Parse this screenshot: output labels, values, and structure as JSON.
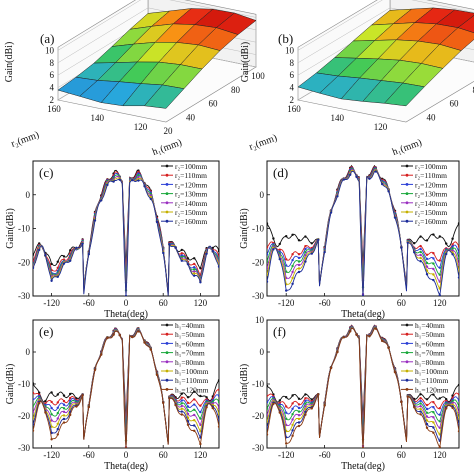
{
  "chart_data": [
    {
      "id": "a",
      "type": "surface3d",
      "panel_label": "(a)",
      "zlabel": "Gain(dBi)",
      "zticks": [
        "2",
        "4",
        "6",
        "8",
        "10"
      ],
      "xlabel": "r₂(mm)",
      "xticks": [
        "160",
        "140",
        "120"
      ],
      "ylabel": "h₁(mm)",
      "yticks": [
        "20",
        "40",
        "60",
        "80",
        "100"
      ],
      "grid": [
        [
          3.6,
          3.9,
          4.4,
          5.3,
          6.3,
          7.1
        ],
        [
          3.3,
          4.1,
          5.2,
          6.4,
          7.5,
          8.2
        ],
        [
          3.0,
          4.6,
          6.0,
          7.4,
          8.6,
          9.3
        ],
        [
          3.2,
          5.0,
          6.7,
          8.1,
          9.2,
          9.9
        ],
        [
          3.9,
          5.5,
          7.0,
          8.4,
          9.4,
          10.0
        ],
        [
          4.2,
          5.6,
          7.0,
          8.2,
          9.0,
          9.5
        ]
      ]
    },
    {
      "id": "b",
      "type": "surface3d",
      "panel_label": "(b)",
      "zlabel": "Gain(dBi)",
      "zticks": [
        "2",
        "4",
        "6",
        "8",
        "10"
      ],
      "xlabel": "r₂(mm)",
      "xticks": [
        "160",
        "140",
        "120"
      ],
      "ylabel": "h₁(mm)",
      "yticks": [
        "40",
        "60",
        "80",
        "100"
      ],
      "grid": [
        [
          4.1,
          4.6,
          5.3,
          6.2,
          7.0,
          7.6
        ],
        [
          3.8,
          4.8,
          5.9,
          7.0,
          7.9,
          8.5
        ],
        [
          3.6,
          5.2,
          6.5,
          7.8,
          8.8,
          9.4
        ],
        [
          3.9,
          5.5,
          7.0,
          8.3,
          9.3,
          9.8
        ],
        [
          4.3,
          5.8,
          7.2,
          8.5,
          9.4,
          9.9
        ],
        [
          4.6,
          5.9,
          7.1,
          8.2,
          9.0,
          9.4
        ]
      ]
    },
    {
      "id": "c",
      "type": "line",
      "panel_label": "(c)",
      "xlabel": "Theta(deg)",
      "ylabel": "Gain(dBi)",
      "xlim": [
        -150,
        150
      ],
      "ylim": [
        -30,
        10
      ],
      "xticks": [
        "-120",
        "-60",
        "0",
        "60",
        "120"
      ],
      "yticks": [
        "0",
        "-10",
        "-20",
        "-30"
      ],
      "legend_position": "right",
      "series": [
        {
          "name": "r₂=100mm",
          "color": "#111111",
          "peak": 6.8,
          "floor": -21
        },
        {
          "name": "r₂=110mm",
          "color": "#d62020",
          "peak": 6.5,
          "floor": -23
        },
        {
          "name": "r₂=120mm",
          "color": "#2a3fd6",
          "peak": 6.2,
          "floor": -24
        },
        {
          "name": "r₂=130mm",
          "color": "#18a83a",
          "peak": 5.9,
          "floor": -24.5
        },
        {
          "name": "r₂=140mm",
          "color": "#9a2fc0",
          "peak": 5.6,
          "floor": -25
        },
        {
          "name": "r₂=150mm",
          "color": "#c5b000",
          "peak": 5.3,
          "floor": -25.5
        },
        {
          "name": "r₂=160mm",
          "color": "#1b2b99",
          "peak": 5.0,
          "floor": -26
        }
      ]
    },
    {
      "id": "d",
      "type": "line",
      "panel_label": "(d)",
      "xlabel": "Theta(deg)",
      "ylabel": "Gain(dBi)",
      "xlim": [
        -150,
        150
      ],
      "ylim": [
        -30,
        10
      ],
      "xticks": [
        "-120",
        "-60",
        "0",
        "60",
        "120"
      ],
      "yticks": [
        "0",
        "-10",
        "-20",
        "-30"
      ],
      "legend_position": "right",
      "series": [
        {
          "name": "r₂=100mm",
          "color": "#111111",
          "peak": 7.8,
          "floor": -12
        },
        {
          "name": "r₂=110mm",
          "color": "#d62020",
          "peak": 7.6,
          "floor": -19
        },
        {
          "name": "r₂=120mm",
          "color": "#2a3fd6",
          "peak": 7.4,
          "floor": -21
        },
        {
          "name": "r₂=130mm",
          "color": "#18a83a",
          "peak": 7.2,
          "floor": -23
        },
        {
          "name": "r₂=140mm",
          "color": "#9a2fc0",
          "peak": 7.0,
          "floor": -25
        },
        {
          "name": "r₂=150mm",
          "color": "#c5b000",
          "peak": 6.8,
          "floor": -27
        },
        {
          "name": "r₂=160mm",
          "color": "#1b2b99",
          "peak": 6.6,
          "floor": -29
        }
      ]
    },
    {
      "id": "e",
      "type": "line",
      "panel_label": "(e)",
      "xlabel": "Theta(deg)",
      "ylabel": "Gain(dBi)",
      "xlim": [
        -150,
        150
      ],
      "ylim": [
        -30,
        10
      ],
      "xticks": [
        "-120",
        "-60",
        "0",
        "60",
        "120"
      ],
      "yticks": [
        "0",
        "-10",
        "-20",
        "-30"
      ],
      "legend_position": "right",
      "series": [
        {
          "name": "h₁=40mm",
          "color": "#111111",
          "peak": 7.0,
          "floor": -13
        },
        {
          "name": "h₁=50mm",
          "color": "#d62020",
          "peak": 6.9,
          "floor": -16
        },
        {
          "name": "h₁=60mm",
          "color": "#2a3fd6",
          "peak": 6.8,
          "floor": -18
        },
        {
          "name": "h₁=70mm",
          "color": "#18a83a",
          "peak": 6.7,
          "floor": -20
        },
        {
          "name": "h₁=80mm",
          "color": "#9a2fc0",
          "peak": 6.6,
          "floor": -22
        },
        {
          "name": "h₁=100mm",
          "color": "#c5b000",
          "peak": 6.5,
          "floor": -24
        },
        {
          "name": "h₁=110mm",
          "color": "#1b2b99",
          "peak": 6.4,
          "floor": -26
        },
        {
          "name": "h₁=120mm",
          "color": "#8a3b12",
          "peak": 6.3,
          "floor": -28
        }
      ]
    },
    {
      "id": "f",
      "type": "line",
      "panel_label": "(f)",
      "xlabel": "Theta(deg)",
      "ylabel": "Gain(dBi)",
      "xlim": [
        -150,
        150
      ],
      "ylim": [
        -30,
        10
      ],
      "xticks": [
        "-120",
        "-60",
        "0",
        "60",
        "120"
      ],
      "yticks": [
        "10",
        "0",
        "-10",
        "-20",
        "-30"
      ],
      "legend_position": "right",
      "series": [
        {
          "name": "h₁=40mm",
          "color": "#111111",
          "peak": 7.6,
          "floor": -14
        },
        {
          "name": "h₁=50mm",
          "color": "#d62020",
          "peak": 7.5,
          "floor": -17
        },
        {
          "name": "h₁=60mm",
          "color": "#2a3fd6",
          "peak": 7.4,
          "floor": -19
        },
        {
          "name": "h₁=70mm",
          "color": "#18a83a",
          "peak": 7.3,
          "floor": -21
        },
        {
          "name": "h₁=80mm",
          "color": "#9a2fc0",
          "peak": 7.2,
          "floor": -23
        },
        {
          "name": "h₁=100mm",
          "color": "#c5b000",
          "peak": 7.1,
          "floor": -25
        },
        {
          "name": "h₁=110mm",
          "color": "#1b2b99",
          "peak": 7.0,
          "floor": -27
        },
        {
          "name": "h₁=120mm",
          "color": "#8a3b12",
          "peak": 6.9,
          "floor": -29
        }
      ]
    }
  ]
}
